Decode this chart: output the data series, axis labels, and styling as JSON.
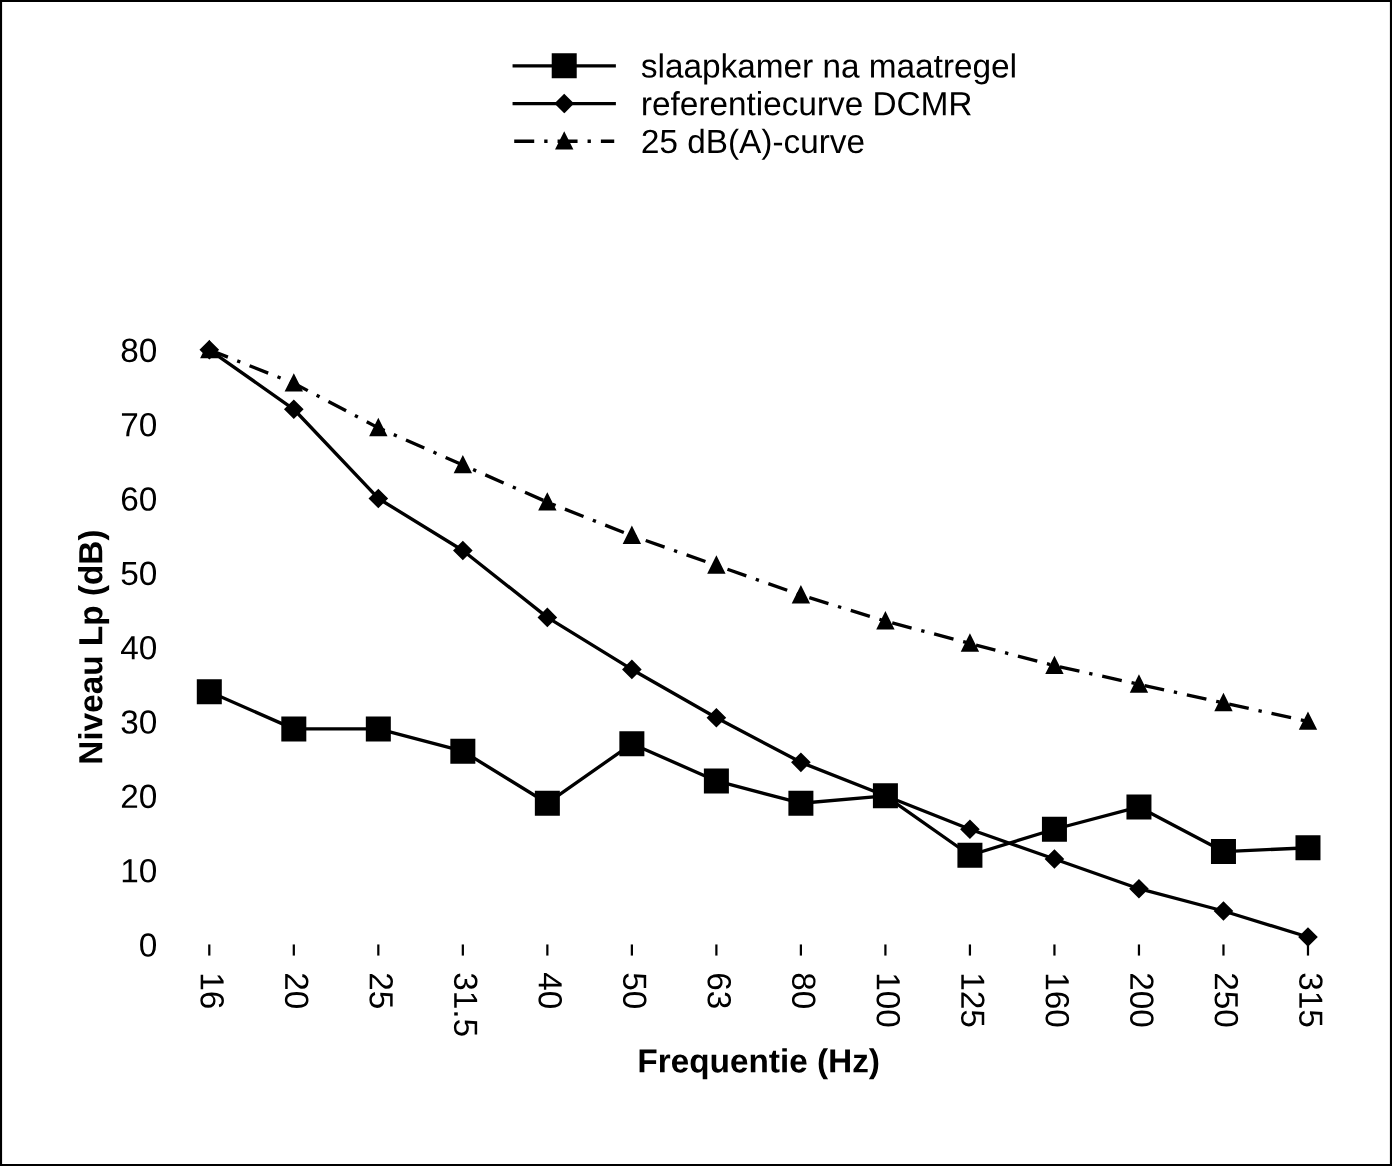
{
  "chart_data": {
    "type": "line",
    "xlabel": "Frequentie (Hz)",
    "ylabel": "Niveau Lp (dB)",
    "categories": [
      "16",
      "20",
      "25",
      "31.5",
      "40",
      "50",
      "63",
      "80",
      "100",
      "125",
      "160",
      "200",
      "250",
      "315"
    ],
    "ylim": [
      0,
      80
    ],
    "yticks": [
      0,
      10,
      20,
      30,
      40,
      50,
      60,
      70,
      80
    ],
    "grid": false,
    "legend": "top",
    "series": [
      {
        "name": "slaapkamer na maatregel",
        "color": "#000000",
        "marker": "square",
        "line_style": "solid",
        "values": [
          34,
          29,
          29,
          26,
          19,
          27,
          22,
          19,
          20,
          12,
          15.5,
          18.5,
          12.5,
          13
        ]
      },
      {
        "name": "referentiecurve DCMR",
        "color": "#000000",
        "marker": "diamond",
        "line_style": "solid",
        "values": [
          80,
          72,
          60,
          53,
          44,
          37,
          30.5,
          24.5,
          20,
          15.5,
          11.5,
          7.5,
          4.5,
          1
        ]
      },
      {
        "name": "25 dB(A)-curve",
        "color": "#000000",
        "marker": "triangle",
        "line_style": "dashdot",
        "values": [
          80,
          75.5,
          69.5,
          64.5,
          59.5,
          55,
          51,
          47,
          43.5,
          40.5,
          37.5,
          35,
          32.5,
          30
        ]
      }
    ]
  }
}
